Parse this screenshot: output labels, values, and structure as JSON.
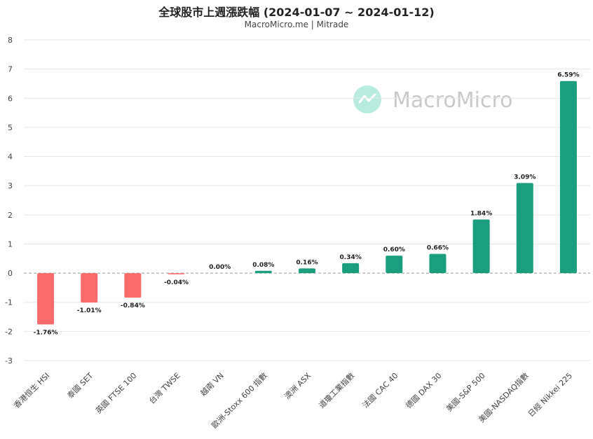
{
  "chart_data": {
    "type": "bar",
    "title": "全球股市上週漲跌幅 (2024-01-07 ~ 2024-01-12)",
    "subtitle": "MacroMicro.me | Mitrade",
    "watermark": "MacroMicro",
    "xlabel": "",
    "ylabel": "",
    "ylim": [
      -3,
      8
    ],
    "yticks": [
      -3,
      -2,
      -1,
      0,
      1,
      2,
      3,
      4,
      5,
      6,
      7,
      8
    ],
    "grid": true,
    "legend": "none",
    "categories": [
      "香港恒生 HSI",
      "泰國 SET",
      "英國 FTSE 100",
      "台灣 TWSE",
      "越南 VN",
      "歐洲-Stoxx 600 指數",
      "澳洲 ASX",
      "道瓊工業指數",
      "法國 CAC 40",
      "德國 DAX 30",
      "美國-S&P 500",
      "美國-NASDAQ指數",
      "日經 Nikkei 225"
    ],
    "values": [
      -1.76,
      -1.01,
      -0.84,
      -0.04,
      0.0,
      0.08,
      0.16,
      0.34,
      0.6,
      0.66,
      1.84,
      3.09,
      6.59
    ],
    "data_labels": [
      "-1.76%",
      "-1.01%",
      "-0.84%",
      "-0.04%",
      "0.00%",
      "0.08%",
      "0.16%",
      "0.34%",
      "0.60%",
      "0.66%",
      "1.84%",
      "3.09%",
      "6.59%"
    ],
    "colors": {
      "positive": "#1a9e7e",
      "negative": "#fb6b6b",
      "watermark": "#b8ecdf"
    }
  }
}
